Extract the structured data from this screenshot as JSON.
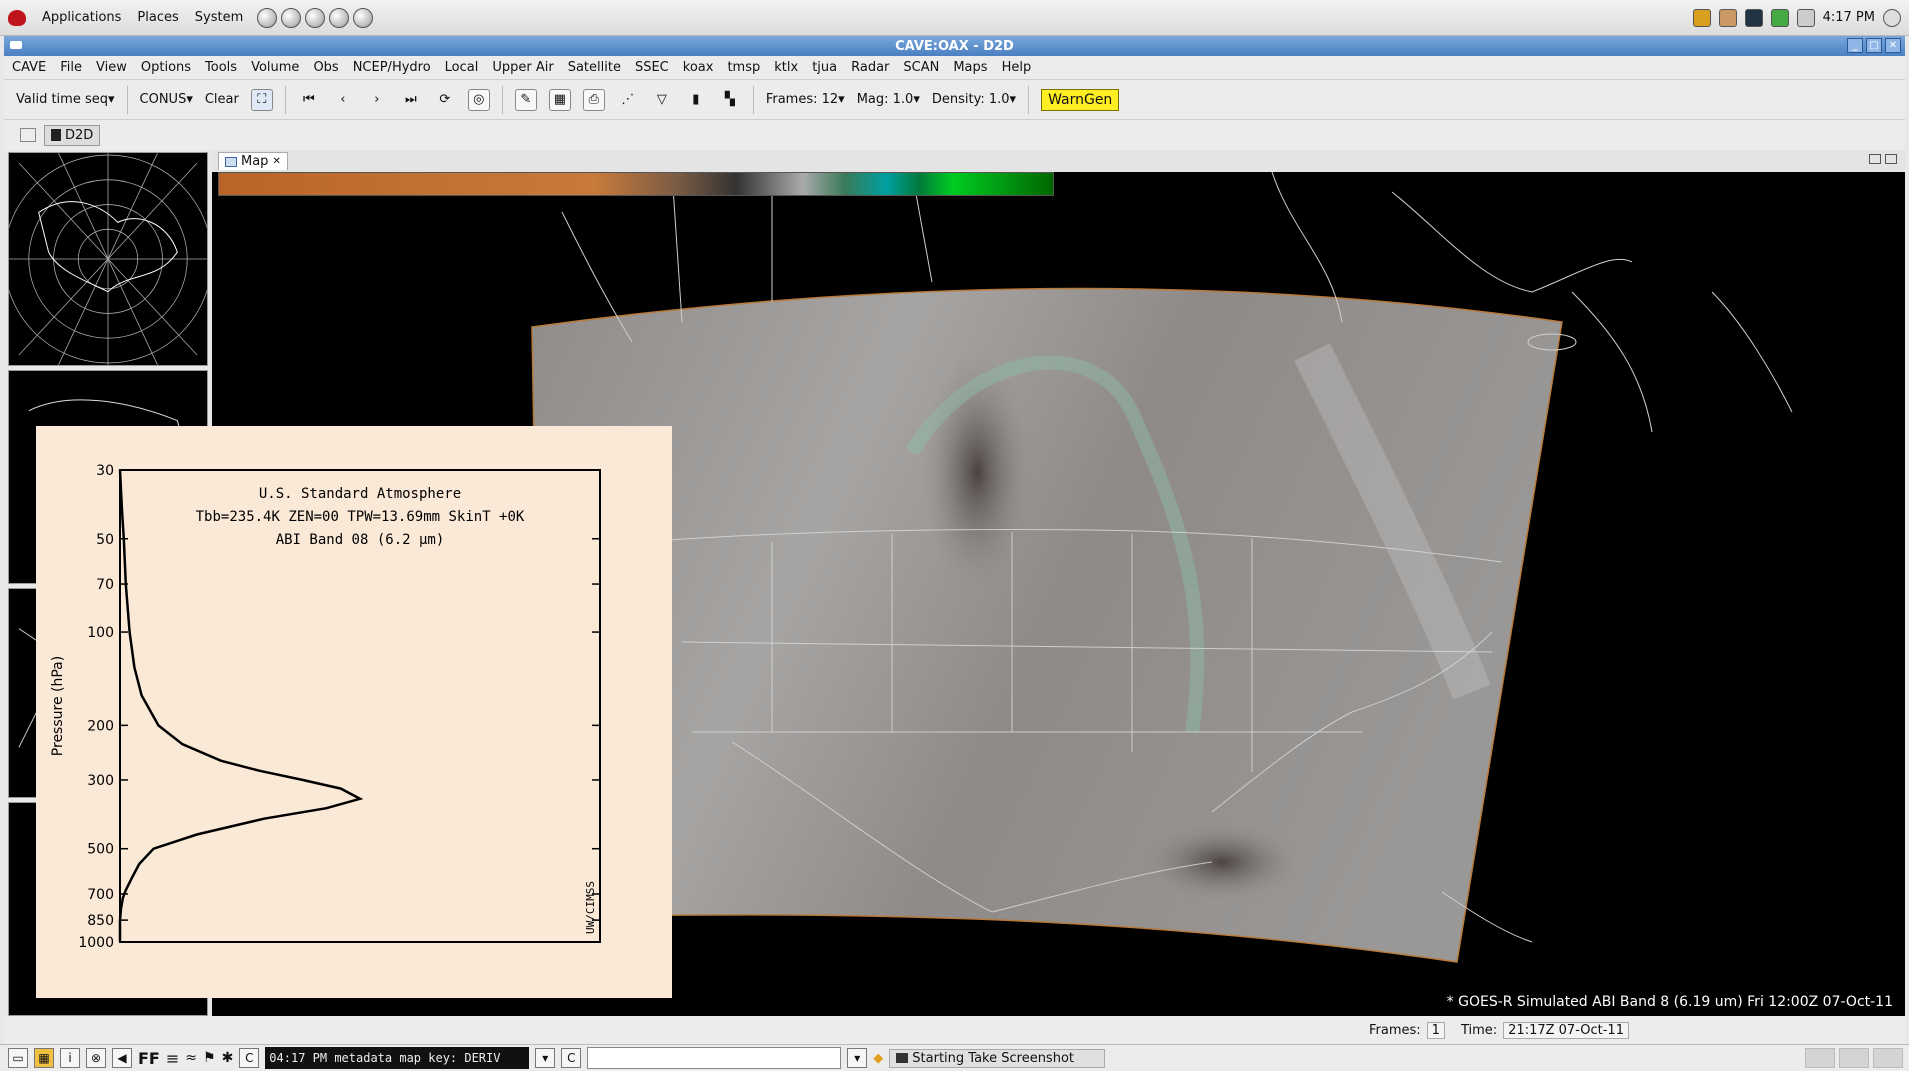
{
  "top_panel": {
    "menus": [
      "Applications",
      "Places",
      "System"
    ],
    "clock": "4:17 PM"
  },
  "window": {
    "title": "CAVE:OAX - D2D"
  },
  "menubar": {
    "items": [
      "CAVE",
      "File",
      "View",
      "Options",
      "Tools",
      "Volume",
      "Obs",
      "NCEP/Hydro",
      "Local",
      "Upper Air",
      "Satellite",
      "SSEC",
      "koax",
      "tmsp",
      "ktlx",
      "tjua",
      "Radar",
      "SCAN",
      "Maps",
      "Help"
    ]
  },
  "toolbar": {
    "valid_time": "Valid time seq▾",
    "scale": "CONUS▾",
    "clear": "Clear",
    "frames": "Frames: 12▾",
    "mag": "Mag: 1.0▾",
    "density": "Density: 1.0▾",
    "warngen": "WarnGen"
  },
  "perspective": {
    "tab": "D2D"
  },
  "map": {
    "tab": "Map",
    "caption": "* GOES-R Simulated ABI Band 8 (6.19 um)  Fri 12:00Z 07-Oct-11",
    "colors": {
      "colorbar_left": "#b86628",
      "colorbar_right": "#006600"
    }
  },
  "chart_data": {
    "type": "line",
    "title": "U.S. Standard  Atmosphere",
    "subtitle": "Tbb=235.4K  ZEN=00  TPW=13.69mm  SkinT +0K",
    "subtitle2": "ABI Band 08 (6.2 µm)",
    "ylabel": "Pressure (hPa)",
    "xlabel": "",
    "credit": "UW/CIMSS",
    "yscale": "log",
    "y_reversed": true,
    "ylim": [
      1000,
      30
    ],
    "xlim": [
      0,
      1
    ],
    "yticks": [
      30,
      50,
      70,
      100,
      200,
      300,
      500,
      700,
      850,
      1000
    ],
    "series": [
      {
        "y": [
          30,
          40,
          50,
          70,
          100,
          130,
          160,
          200,
          230,
          260,
          280,
          300,
          320,
          345,
          370,
          400,
          450,
          500,
          560,
          620,
          680,
          720,
          780,
          850,
          1000
        ],
        "x": [
          0.0,
          0.004,
          0.008,
          0.012,
          0.02,
          0.03,
          0.045,
          0.08,
          0.13,
          0.21,
          0.29,
          0.38,
          0.46,
          0.5,
          0.43,
          0.3,
          0.16,
          0.07,
          0.04,
          0.025,
          0.012,
          0.006,
          0.002,
          0.0,
          0.0
        ]
      }
    ]
  },
  "status": {
    "frames_label": "Frames:",
    "frames_value": "1",
    "time_label": "Time:",
    "time_value": "21:17Z 07-Oct-11"
  },
  "bottom_bar": {
    "ff": "FF",
    "console": "04:17 PM metadata map key: DERIV",
    "task": "Starting Take Screenshot"
  }
}
